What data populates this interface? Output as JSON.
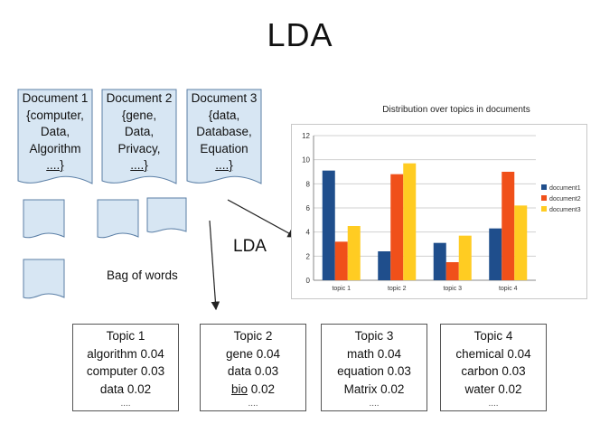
{
  "title": "LDA",
  "documents": [
    {
      "lines": [
        "Document 1",
        "{computer,",
        "Data,",
        "Algorithm"
      ],
      "ellipsis": "....}"
    },
    {
      "lines": [
        "Document 2",
        "{gene,",
        "Data,",
        "Privacy,"
      ],
      "ellipsis": "....}"
    },
    {
      "lines": [
        "Document 3",
        "{data,",
        "Database,",
        "Equation"
      ],
      "ellipsis": "....}"
    }
  ],
  "labels": {
    "lda": "LDA",
    "bag_of_words": "Bag of words"
  },
  "topics": [
    {
      "name": "Topic 1",
      "words": [
        {
          "text": "algorithm 0.04"
        },
        {
          "text": "computer 0.03"
        },
        {
          "text": "data  0.02"
        }
      ],
      "more": "...."
    },
    {
      "name": "Topic 2",
      "words": [
        {
          "text": "gene 0.04"
        },
        {
          "text": "data 0.03"
        },
        {
          "word": "bio",
          "weight": " 0.02"
        }
      ],
      "more": "...."
    },
    {
      "name": "Topic 3",
      "words": [
        {
          "text": "math 0.04"
        },
        {
          "text": "equation 0.03"
        },
        {
          "text": "Matrix  0.02"
        }
      ],
      "more": "...."
    },
    {
      "name": "Topic 4",
      "words": [
        {
          "text": "chemical 0.04"
        },
        {
          "text": "carbon 0.03"
        },
        {
          "text": "water  0.02"
        }
      ],
      "more": "...."
    }
  ],
  "colors": {
    "document_fill": "#d7e6f3",
    "document_stroke": "#5b7fa6",
    "grid": "#d0d0d0"
  },
  "chart_data": {
    "type": "bar",
    "title": "Distribution over topics in documents",
    "categories": [
      "topic 1",
      "topic 2",
      "topic 3",
      "topic 4"
    ],
    "series": [
      {
        "name": "document1",
        "color": "#1f4e8c",
        "values": [
          9.1,
          2.4,
          3.1,
          4.3
        ]
      },
      {
        "name": "document2",
        "color": "#f0501a",
        "values": [
          3.2,
          8.8,
          1.5,
          9.0
        ]
      },
      {
        "name": "document3",
        "color": "#ffcc22",
        "values": [
          4.5,
          9.7,
          3.7,
          6.2
        ]
      }
    ],
    "ylim": [
      0,
      12
    ],
    "yticks": [
      0,
      2,
      4,
      6,
      8,
      10,
      12
    ],
    "grid": true,
    "legend": "right"
  }
}
